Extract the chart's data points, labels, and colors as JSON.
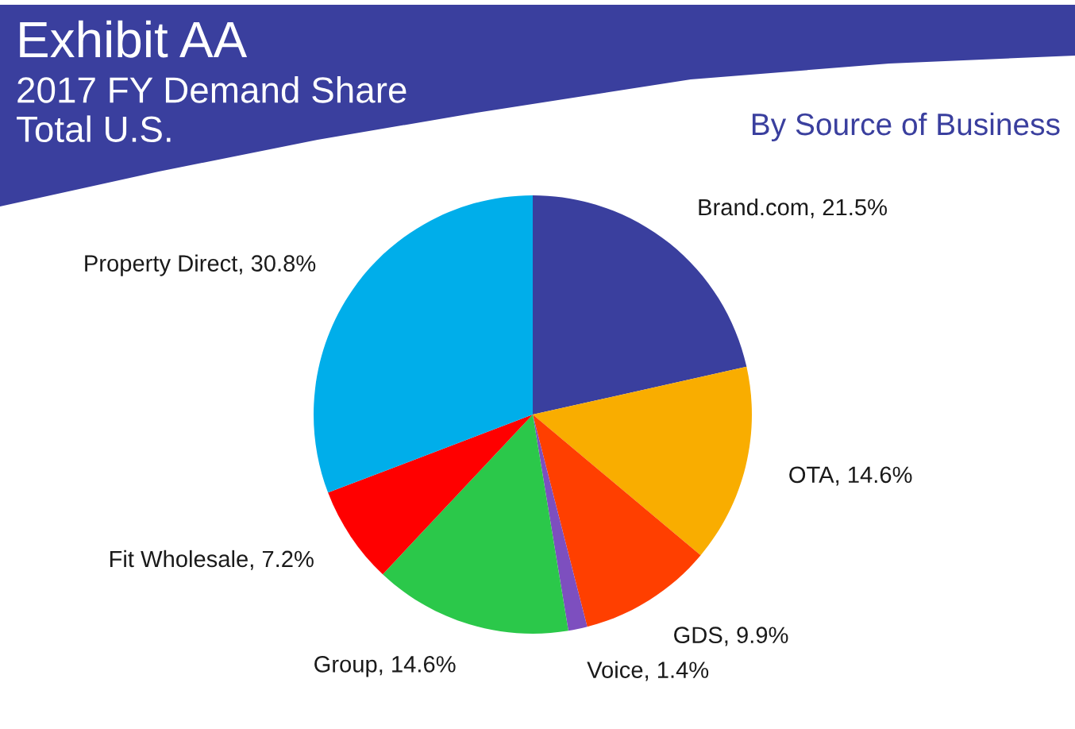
{
  "chart_data": {
    "type": "pie",
    "title": "Exhibit AA",
    "subtitle": "2017 FY Demand Share\nTotal U.S.",
    "annotations": [
      "By Source of Business"
    ],
    "categories": [
      "Brand.com",
      "OTA",
      "GDS",
      "Voice",
      "Group",
      "Fit Wholesale",
      "Property Direct"
    ],
    "values": [
      21.5,
      14.6,
      9.9,
      1.4,
      14.6,
      7.2,
      30.8
    ],
    "value_labels": [
      "21.5%",
      "14.6%",
      "9.9%",
      "1.4%",
      "14.6%",
      "7.2%",
      "30.8%"
    ],
    "colors": [
      "#3a3f9e",
      "#f9ad00",
      "#ff3f00",
      "#7d4fbf",
      "#2bc84a",
      "#ff0000",
      "#00aeea"
    ]
  }
}
